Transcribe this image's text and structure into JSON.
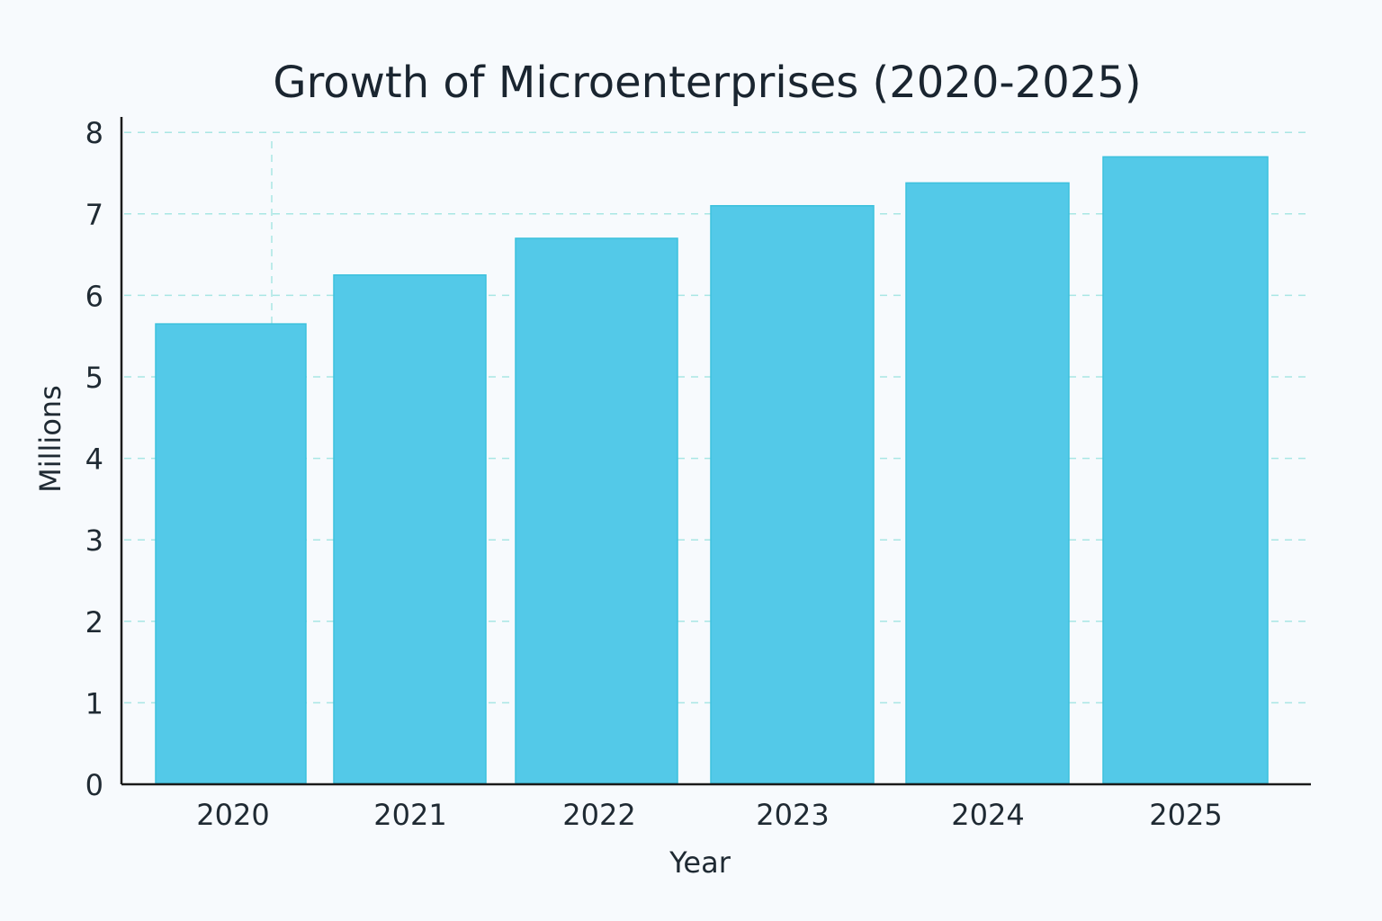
{
  "chart_data": {
    "type": "bar",
    "title": "Growth of Microenterprises (2020-2025)",
    "xlabel": "Year",
    "ylabel": "Millions",
    "categories": [
      "2020",
      "2021",
      "2022",
      "2023",
      "2024",
      "2025"
    ],
    "values": [
      5.65,
      6.25,
      6.7,
      7.1,
      7.38,
      7.7
    ],
    "ylim": [
      0,
      8
    ],
    "yticks": [
      "0",
      "1",
      "2",
      "3",
      "4",
      "5",
      "6",
      "7",
      "8"
    ],
    "grid": true,
    "bar_color": "#53c9e8"
  }
}
